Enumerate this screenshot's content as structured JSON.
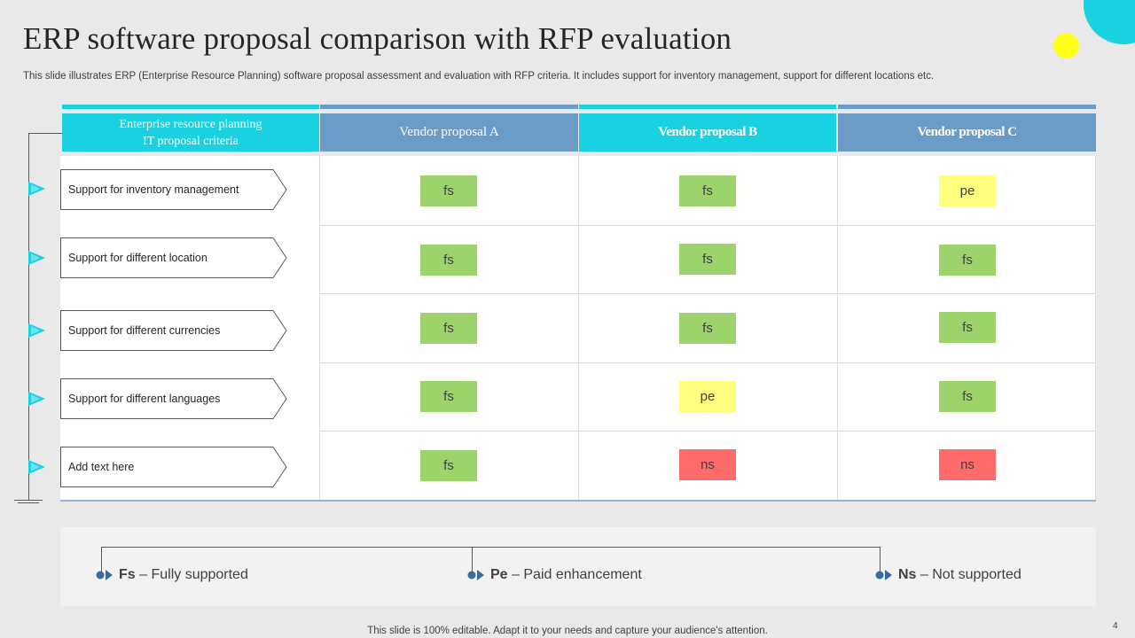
{
  "title": "ERP software proposal comparison with RFP evaluation",
  "subtitle": "This slide illustrates ERP (Enterprise Resource Planning) software proposal assessment and evaluation with RFP criteria. It includes support for inventory management, support for different locations etc.",
  "colors": {
    "cyan": "#19d1e0",
    "steel_blue": "#6b9bc7",
    "green": "#9dd36b",
    "yellow": "#ffff7f",
    "red": "#ff6b6b",
    "accent_yellow": "#ffff1a"
  },
  "table": {
    "header": {
      "criteria_line1": "Enterprise resource planning",
      "criteria_line2": "IT proposal criteria",
      "vendor_a": "Vendor proposal A",
      "vendor_b": "Vendor proposal B",
      "vendor_c": "Vendor proposal C"
    },
    "rows": [
      {
        "criteria": "Support for inventory  management",
        "a": "fs",
        "b": "fs",
        "c": "pe"
      },
      {
        "criteria": "Support for different  location",
        "a": "fs",
        "b": "fs",
        "c": "fs"
      },
      {
        "criteria": "Support for different  currencies",
        "a": "fs",
        "b": "fs",
        "c": "fs"
      },
      {
        "criteria": "Support for different  languages",
        "a": "fs",
        "b": "pe",
        "c": "fs"
      },
      {
        "criteria": "Add text here",
        "a": "fs",
        "b": "ns",
        "c": "ns"
      }
    ]
  },
  "legend": {
    "fs_key": "Fs",
    "fs_text": " – Fully  supported",
    "pe_key": "Pe",
    "pe_text": " – Paid enhancement",
    "ns_key": "Ns",
    "ns_text": " – Not supported"
  },
  "footer": "This slide is 100% editable. Adapt it to your needs and capture your audience's attention.",
  "page_number": "4"
}
